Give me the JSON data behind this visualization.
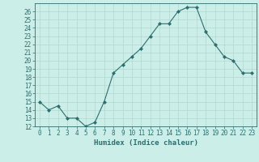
{
  "x": [
    0,
    1,
    2,
    3,
    4,
    5,
    6,
    7,
    8,
    9,
    10,
    11,
    12,
    13,
    14,
    15,
    16,
    17,
    18,
    19,
    20,
    21,
    22,
    23
  ],
  "y": [
    15,
    14,
    14.5,
    13,
    13,
    12,
    12.5,
    15,
    18.5,
    19.5,
    20.5,
    21.5,
    23,
    24.5,
    24.5,
    26,
    26.5,
    26.5,
    23.5,
    22,
    20.5,
    20,
    18.5,
    18.5
  ],
  "line_color": "#2d6e6e",
  "marker": "D",
  "marker_size": 2,
  "bg_color": "#cceee8",
  "grid_color": "#b0d8d0",
  "ylim": [
    12,
    27
  ],
  "xlim": [
    -0.5,
    23.5
  ],
  "yticks": [
    12,
    13,
    14,
    15,
    16,
    17,
    18,
    19,
    20,
    21,
    22,
    23,
    24,
    25,
    26
  ],
  "xticks": [
    0,
    1,
    2,
    3,
    4,
    5,
    6,
    7,
    8,
    9,
    10,
    11,
    12,
    13,
    14,
    15,
    16,
    17,
    18,
    19,
    20,
    21,
    22,
    23
  ],
  "xlabel": "Humidex (Indice chaleur)",
  "tick_color": "#2d6e6e",
  "label_fontsize": 5.5,
  "xlabel_fontsize": 6.5,
  "linewidth": 0.8
}
